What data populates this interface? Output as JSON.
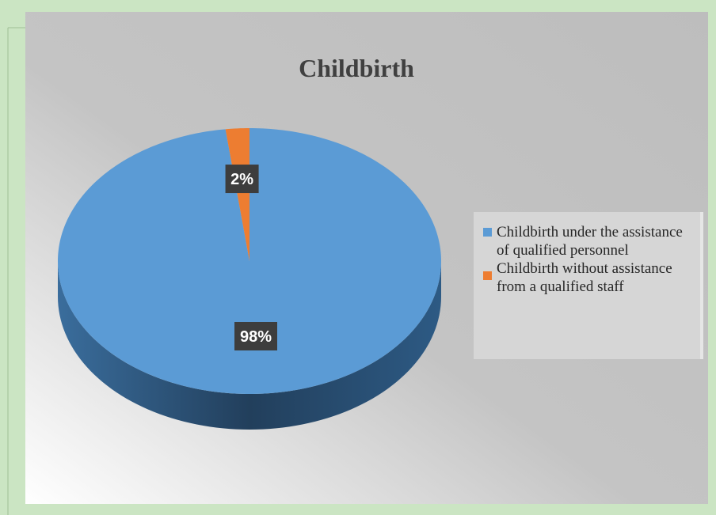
{
  "chart_data": {
    "type": "pie",
    "title": "Childbirth",
    "categories": [
      "Childbirth under the assistance of qualified personnel",
      "Childbirth without assistance from a qualified staff"
    ],
    "values": [
      98,
      2
    ],
    "value_labels": [
      "98%",
      "2%"
    ],
    "colors": [
      "#5b9bd5",
      "#ed7d31"
    ],
    "legend": "right"
  }
}
